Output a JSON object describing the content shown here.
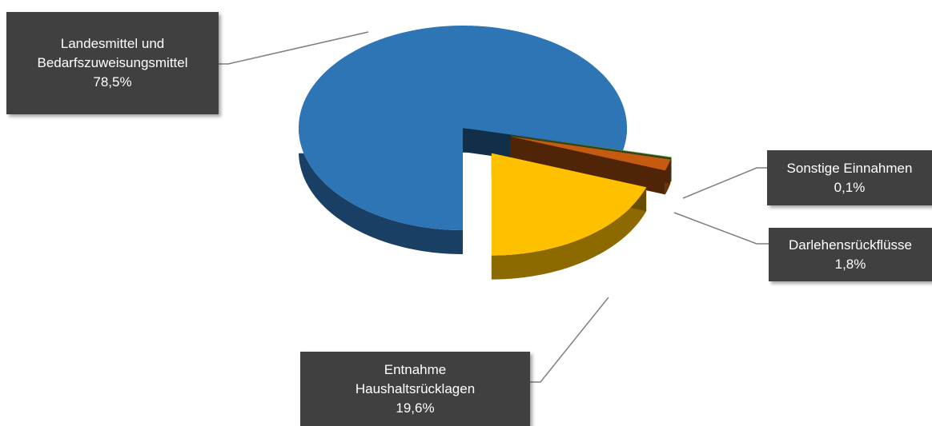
{
  "chart_data": {
    "type": "pie",
    "categories": [
      "Landesmittel und Bedarfszuweisungsmittel",
      "Sonstige Einnahmen",
      "Darlehensrückflüsse",
      "Entnahme Haushaltsrücklagen"
    ],
    "values": [
      78.5,
      0.1,
      1.8,
      19.6
    ],
    "value_labels": [
      "78,5%",
      "0,1%",
      "1,8%",
      "19,6%"
    ],
    "colors": [
      "#2e75b6",
      "#70ad47",
      "#c55a11",
      "#ffc000"
    ]
  }
}
